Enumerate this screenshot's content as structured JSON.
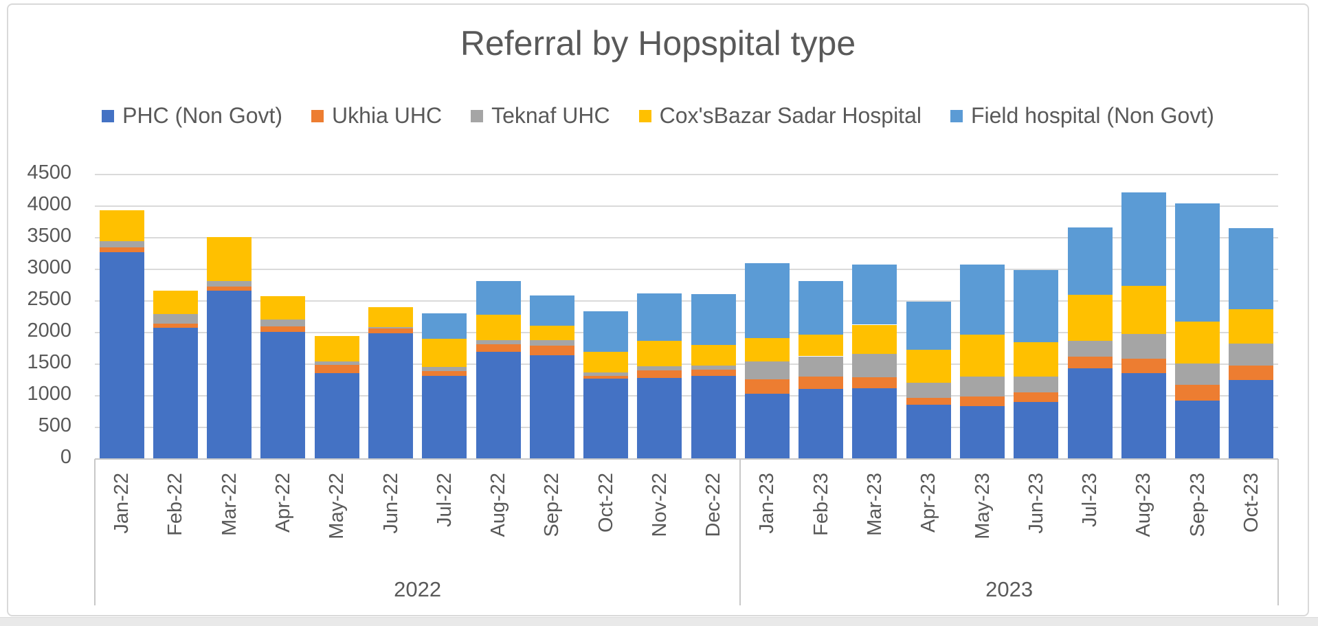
{
  "chart_data": {
    "type": "bar",
    "stacked": true,
    "title": "Referral by Hopspital type",
    "grid": true,
    "legend_position": "top",
    "categories": [
      "Jan-22",
      "Feb-22",
      "Mar-22",
      "Apr-22",
      "May-22",
      "Jun-22",
      "Jul-22",
      "Aug-22",
      "Sep-22",
      "Oct-22",
      "Nov-22",
      "Dec-22",
      "Jan-23",
      "Feb-23",
      "Mar-23",
      "Apr-23",
      "May-23",
      "Jun-23",
      "Jul-23",
      "Aug-23",
      "Sep-23",
      "Oct-23"
    ],
    "category_groups": [
      {
        "label": "2022",
        "count": 12
      },
      {
        "label": "2023",
        "count": 10
      }
    ],
    "series": [
      {
        "name": "PHC (Non Govt)",
        "color": "#4472C4",
        "values": [
          3270,
          2075,
          2660,
          2010,
          1355,
          1990,
          1320,
          1700,
          1645,
          1270,
          1285,
          1310,
          1030,
          1110,
          1120,
          855,
          840,
          900,
          1430,
          1355,
          920,
          1255
        ]
      },
      {
        "name": "Ukhia UHC",
        "color": "#ED7D31",
        "values": [
          80,
          65,
          70,
          90,
          135,
          70,
          75,
          110,
          145,
          45,
          115,
          100,
          230,
          190,
          170,
          110,
          150,
          150,
          190,
          235,
          255,
          220
        ]
      },
      {
        "name": "Teknaf UHC",
        "color": "#A5A5A5",
        "values": [
          100,
          150,
          85,
          105,
          55,
          30,
          60,
          70,
          90,
          55,
          65,
          70,
          280,
          325,
          375,
          240,
          310,
          250,
          245,
          390,
          335,
          355
        ]
      },
      {
        "name": "Cox'sBazar Sadar Hospital",
        "color": "#FFC000",
        "values": [
          490,
          370,
          700,
          375,
          400,
          310,
          445,
          400,
          225,
          325,
          410,
          325,
          375,
          345,
          460,
          520,
          665,
          545,
          735,
          760,
          665,
          535
        ]
      },
      {
        "name": "Field hospital (Non Govt)",
        "color": "#5B9BD5",
        "values": [
          0,
          0,
          0,
          0,
          0,
          0,
          405,
          535,
          485,
          640,
          750,
          800,
          1180,
          840,
          950,
          765,
          1110,
          1140,
          1065,
          1480,
          1865,
          1285
        ]
      }
    ],
    "y_axis": {
      "min": 0,
      "max": 4500,
      "step": 500,
      "ticks": [
        "0",
        "500",
        "1000",
        "1500",
        "2000",
        "2500",
        "3000",
        "3500",
        "4000",
        "4500"
      ]
    }
  },
  "style_colors": {
    "text": "#595959",
    "gridline": "#dadada",
    "axis_frame": "#c8c8c8",
    "chart_border": "#d9d9d9",
    "background": "#ffffff",
    "bottom_strip": "#e9e9e9"
  }
}
